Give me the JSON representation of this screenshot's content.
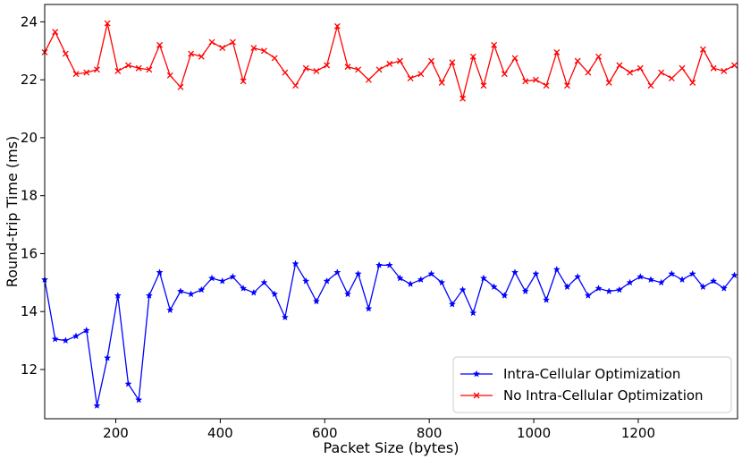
{
  "chart_data": {
    "type": "line",
    "xlabel": "Packet Size (bytes)",
    "ylabel": "Round-trip Time (ms)",
    "xlim": [
      64,
      1390
    ],
    "ylim": [
      10.3,
      24.6
    ],
    "xticks": [
      200,
      400,
      600,
      800,
      1000,
      1200
    ],
    "yticks": [
      12,
      14,
      16,
      18,
      20,
      22,
      24
    ],
    "grid": false,
    "legend_position": "lower-right",
    "x": [
      64,
      84,
      104,
      124,
      144,
      164,
      184,
      204,
      224,
      244,
      264,
      284,
      304,
      324,
      344,
      364,
      384,
      404,
      424,
      444,
      464,
      484,
      504,
      524,
      544,
      564,
      584,
      604,
      624,
      644,
      664,
      684,
      704,
      724,
      744,
      764,
      784,
      804,
      824,
      844,
      864,
      884,
      904,
      924,
      944,
      964,
      984,
      1004,
      1024,
      1044,
      1064,
      1084,
      1104,
      1124,
      1144,
      1164,
      1184,
      1204,
      1224,
      1244,
      1264,
      1284,
      1304,
      1324,
      1344,
      1364,
      1384
    ],
    "series": [
      {
        "name": "Intra-Cellular Optimization",
        "color": "#0000ff",
        "marker": "star",
        "values": [
          15.1,
          13.05,
          13.0,
          13.15,
          13.35,
          10.75,
          12.4,
          14.55,
          11.5,
          10.95,
          14.55,
          15.35,
          14.05,
          14.7,
          14.6,
          14.75,
          15.15,
          15.05,
          15.2,
          14.8,
          14.65,
          15.0,
          14.6,
          13.8,
          15.65,
          15.05,
          14.35,
          15.05,
          15.35,
          14.6,
          15.3,
          14.1,
          15.6,
          15.6,
          15.15,
          14.95,
          15.1,
          15.3,
          15.0,
          14.25,
          14.75,
          13.95,
          15.15,
          14.85,
          14.55,
          15.35,
          14.7,
          15.3,
          14.4,
          15.45,
          14.85,
          15.2,
          14.55,
          14.8,
          14.7,
          14.75,
          15.0,
          15.2,
          15.1,
          15.0,
          15.3,
          15.1,
          15.3,
          14.85,
          15.05,
          14.8,
          15.25
        ]
      },
      {
        "name": "No Intra-Cellular Optimization",
        "color": "#ff0000",
        "marker": "x",
        "values": [
          22.95,
          23.65,
          22.9,
          22.2,
          22.25,
          22.35,
          23.95,
          22.3,
          22.5,
          22.4,
          22.35,
          23.2,
          22.15,
          21.75,
          22.9,
          22.8,
          23.3,
          23.1,
          23.3,
          21.95,
          23.1,
          23.0,
          22.75,
          22.25,
          21.8,
          22.4,
          22.3,
          22.5,
          23.85,
          22.45,
          22.35,
          22.0,
          22.35,
          22.55,
          22.65,
          22.05,
          22.2,
          22.65,
          21.9,
          22.6,
          21.35,
          22.8,
          21.8,
          23.2,
          22.2,
          22.75,
          21.95,
          22.0,
          21.8,
          22.95,
          21.8,
          22.65,
          22.25,
          22.8,
          21.9,
          22.5,
          22.25,
          22.4,
          21.8,
          22.25,
          22.05,
          22.4,
          21.9,
          23.05,
          22.4,
          22.3,
          22.5
        ]
      }
    ]
  }
}
